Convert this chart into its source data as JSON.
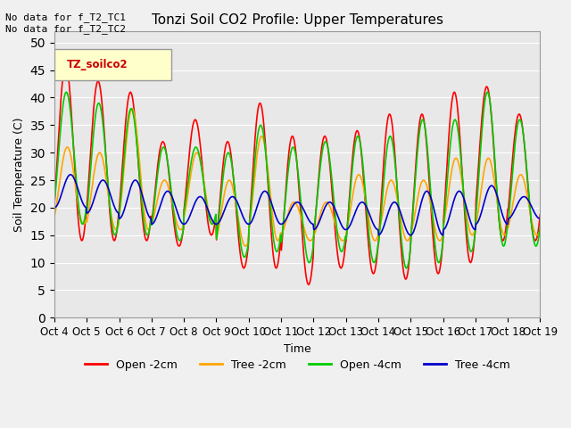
{
  "title": "Tonzi Soil CO2 Profile: Upper Temperatures",
  "ylabel": "Soil Temperature (C)",
  "xlabel": "Time",
  "top_note": "No data for f_T2_TC1\nNo data for f_T2_TC2",
  "legend_label": "TZ_soilco2",
  "ylim": [
    0,
    52
  ],
  "yticks": [
    0,
    5,
    10,
    15,
    20,
    25,
    30,
    35,
    40,
    45,
    50
  ],
  "bg_color": "#e8e8e8",
  "series": {
    "open_2cm": {
      "label": "Open -2cm",
      "color": "#ff0000"
    },
    "tree_2cm": {
      "label": "Tree -2cm",
      "color": "#ffa500"
    },
    "open_4cm": {
      "label": "Open -4cm",
      "color": "#00cc00"
    },
    "tree_4cm": {
      "label": "Tree -4cm",
      "color": "#0000cc"
    }
  },
  "xtick_labels": [
    "Oct 4",
    "Oct 5",
    "Oct 6",
    "Oct 7",
    "Oct 8",
    "Oct 9",
    "Oct 10",
    "Oct 11",
    "Oct 12",
    "Oct 13",
    "Oct 14",
    "Oct 15",
    "Oct 16",
    "Oct 17",
    "Oct 18",
    "Oct 19"
  ],
  "num_days": 15,
  "points_per_day": 48
}
